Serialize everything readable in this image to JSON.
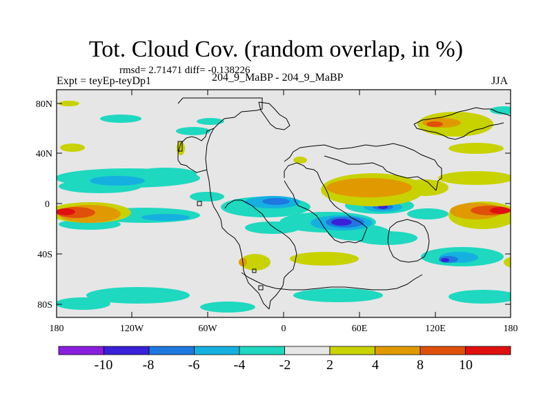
{
  "title": "Tot. Cloud Cov. (random overlap, in %)",
  "stats_line": "rmsd= 2.71471 diff= -0.138226",
  "experiment_label": "Expt = teyEp-teyDp1",
  "run_pair": "204_9_MaBP - 204_9_MaBP",
  "season": "JJA",
  "map": {
    "lat_ticks": [
      "80N",
      "40N",
      "0",
      "40S",
      "80S"
    ],
    "lon_ticks": [
      "180",
      "120W",
      "60W",
      "0",
      "60E",
      "120E",
      "180"
    ]
  },
  "colorbar": {
    "labels": [
      "-10",
      "-8",
      "-6",
      "-4",
      "-2",
      "2",
      "4",
      "8",
      "10"
    ],
    "colors": [
      "#8a1ee0",
      "#3a20d8",
      "#1e78e0",
      "#15b0e0",
      "#1ed8c0",
      "#e6e6e6",
      "#c8d200",
      "#e09a00",
      "#e0500a",
      "#e01010"
    ]
  }
}
